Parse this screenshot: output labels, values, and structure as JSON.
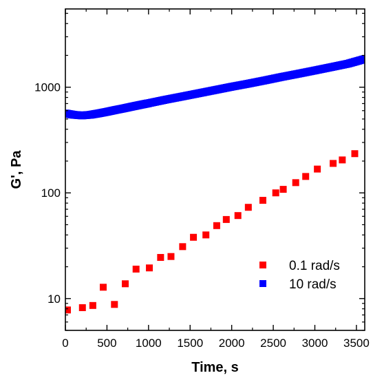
{
  "chart_data": {
    "type": "scatter",
    "title": "",
    "xlabel": "Time, s",
    "ylabel": "G', Pa",
    "xlim": [
      0,
      3600
    ],
    "ylim": [
      5,
      5500
    ],
    "yscale": "log",
    "xticks": [
      0,
      500,
      1000,
      1500,
      2000,
      2500,
      3000,
      3500
    ],
    "xtick_labels": [
      "0",
      "500",
      "1000",
      "1500",
      "2000",
      "2500",
      "3000",
      "3500"
    ],
    "yticks": [
      10,
      100,
      1000
    ],
    "ytick_labels": [
      "10",
      "100",
      "1000"
    ],
    "grid": false,
    "legend_position": "bottom-right",
    "series": [
      {
        "name": "0.1 rad/s",
        "color": "#ff0000",
        "marker": "square",
        "x": [
          25,
          205,
          330,
          455,
          590,
          720,
          850,
          1010,
          1145,
          1270,
          1410,
          1540,
          1690,
          1820,
          1935,
          2075,
          2200,
          2375,
          2530,
          2620,
          2770,
          2890,
          3030,
          3220,
          3330,
          3480
        ],
        "y": [
          7.8,
          8.2,
          8.6,
          12.8,
          8.8,
          13.8,
          19.0,
          19.5,
          24.5,
          25.0,
          31.0,
          38.0,
          40.0,
          49.0,
          56.0,
          61.0,
          73.0,
          85.0,
          100.0,
          108.0,
          125.0,
          143.0,
          168.0,
          190.0,
          205.0,
          235.0
        ]
      },
      {
        "name": "10 rad/s",
        "color": "#0000ff",
        "marker": "square",
        "x": [
          0,
          100,
          200,
          300,
          400,
          500,
          600,
          700,
          800,
          900,
          1000,
          1200,
          1400,
          1600,
          1800,
          2000,
          2200,
          2400,
          2600,
          2800,
          3000,
          3200,
          3400,
          3600
        ],
        "y": [
          565,
          548,
          540,
          548,
          565,
          585,
          608,
          630,
          655,
          680,
          705,
          760,
          815,
          875,
          940,
          1010,
          1080,
          1160,
          1250,
          1340,
          1440,
          1550,
          1670,
          1850
        ]
      }
    ]
  }
}
